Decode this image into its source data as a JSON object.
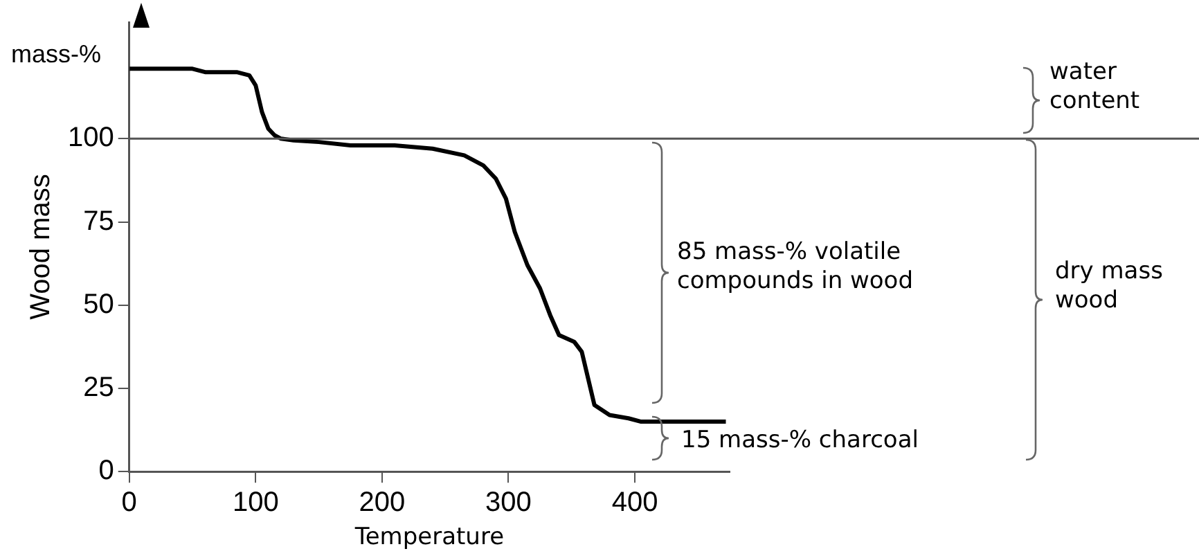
{
  "chart_data": {
    "type": "line",
    "xlabel": "Temperature",
    "ylabel": "Wood mass",
    "xlim": [
      0,
      475
    ],
    "ylim": [
      0,
      135
    ],
    "xticks": [
      0,
      100,
      200,
      300,
      400
    ],
    "yticks": [
      0,
      25,
      50,
      75,
      100
    ],
    "series": [
      {
        "color": "#000000",
        "x": [
          0,
          50,
          60,
          85,
          95,
          100,
          105,
          110,
          115,
          120,
          130,
          150,
          175,
          210,
          240,
          265,
          280,
          290,
          298,
          305,
          315,
          325,
          333,
          340,
          352,
          358,
          363,
          368,
          380,
          395,
          405,
          472
        ],
        "values": [
          121,
          121,
          120,
          120,
          119,
          116,
          108,
          103,
          101,
          100,
          99.5,
          99,
          98,
          98,
          97,
          95,
          92,
          88,
          82,
          72,
          62,
          55,
          47,
          41,
          39,
          36,
          28,
          20,
          17,
          16,
          15,
          15
        ]
      }
    ],
    "ref_lines": [
      {
        "axis": "y",
        "value": 100,
        "color": "#555555"
      }
    ],
    "annotations": [
      "mass-%",
      "water content",
      "85 mass-% volatile compounds in wood",
      "dry mass wood",
      "15 mass-% charcoal"
    ],
    "grid": false,
    "legend": false,
    "marker": "none",
    "line_style": "solid"
  }
}
